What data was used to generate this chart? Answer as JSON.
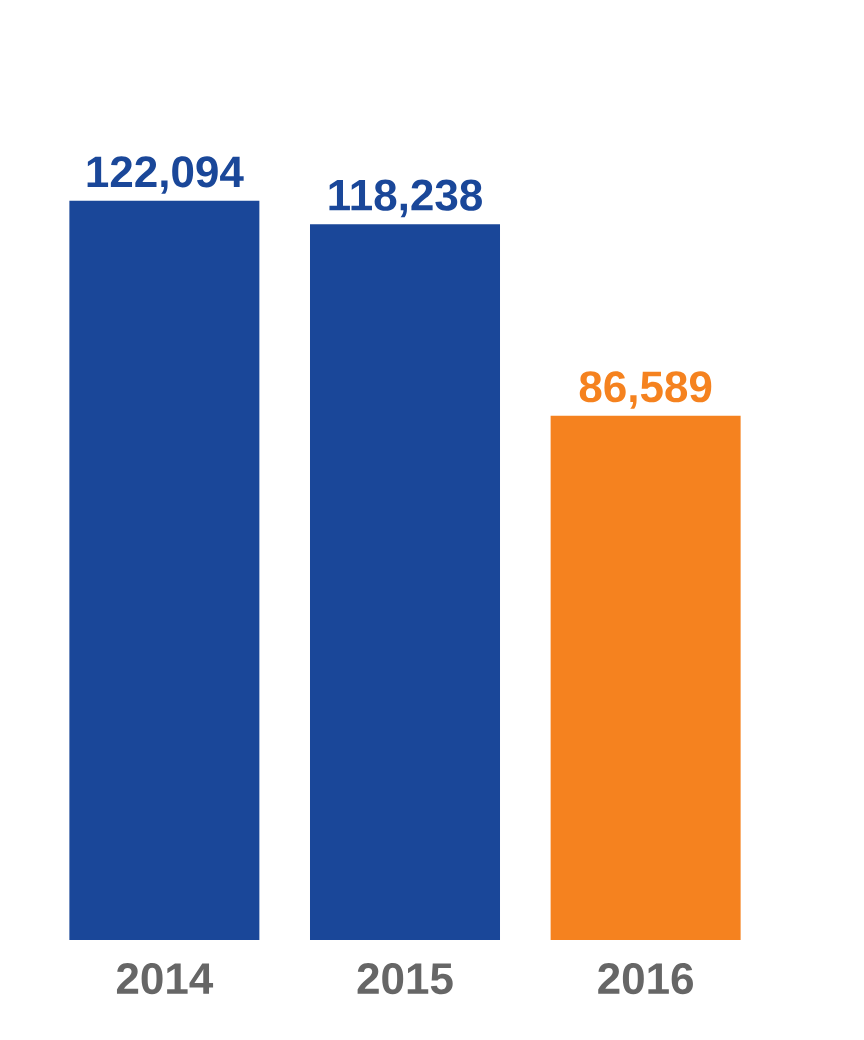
{
  "chart_data": {
    "type": "bar",
    "categories": [
      "2014",
      "2015",
      "2016"
    ],
    "values": [
      122094,
      118238,
      86589
    ],
    "colors": [
      "#1a4799",
      "#1a4799",
      "#f5821f"
    ],
    "value_labels": [
      "122,094",
      "118,238",
      "86,589"
    ]
  }
}
